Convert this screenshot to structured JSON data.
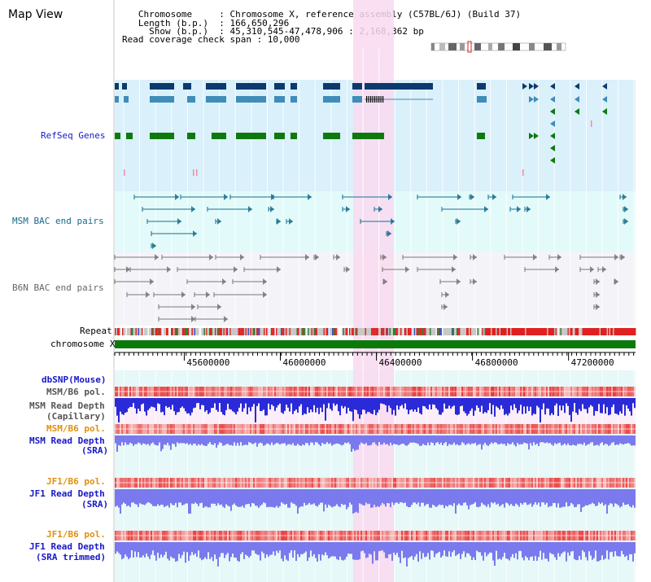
{
  "header": {
    "title": "Map View",
    "info_lines": [
      "   Chromosome     : Chromosome X, reference assembly (C57BL/6J) (Build 37)",
      "   Length (b.p.)  : 166,650,296",
      "     Show (b.p.)  : 45,310,545-47,478,906 : 2,168,362 bp",
      "Read coverage check span : 10,000"
    ]
  },
  "tracks": {
    "refseq": "RefSeq Genes",
    "msm_bac": "MSM BAC end pairs",
    "b6n_bac": "B6N BAC end pairs",
    "repeat": "Repeat",
    "chromosome": "chromosome X",
    "dbsnp": "dbSNP(Mouse)",
    "msm_b6_pol_1": "MSM/B6 pol.",
    "msm_depth_cap_1": "MSM Read Depth",
    "msm_depth_cap_2": "(Capillary)",
    "msm_b6_pol_2": "MSM/B6 pol.",
    "msm_depth_sra_1": "MSM Read Depth",
    "msm_depth_sra_2": "(SRA)",
    "jf1_b6_pol_1": "JF1/B6 pol.",
    "jf1_depth_sra_1": "JF1 Read Depth",
    "jf1_depth_sra_2": "(SRA)",
    "jf1_b6_pol_2": "JF1/B6 pol.",
    "jf1_depth_trim_1": "JF1 Read Depth",
    "jf1_depth_trim_2": "(SRA trimmed)"
  },
  "axis": {
    "ticks": [
      "45600000",
      "46000000",
      "46400000",
      "46800000",
      "47200000"
    ],
    "range": [
      45310545,
      47478906
    ]
  },
  "colors": {
    "highlight": "#f9d9f0",
    "refseq_bg": "#daf0fa",
    "msm_bac_bg": "#e3fafa",
    "b6n_bac_bg": "#f4f4f8",
    "gene_dark": "#0c3a6e",
    "gene_mid": "#3f8db8",
    "gene_green": "#0e7a0e",
    "bac_teal": "#1a6e8e",
    "bac_gray": "#777777",
    "chrom_green": "#0b7a0b",
    "depth_blue": "#2a2ad8",
    "depth_light": "#7a7aee",
    "pol_red": "#e83232",
    "label_blue": "#1818c8",
    "label_teal": "#166a8a",
    "label_gray": "#555555",
    "label_orange": "#e09010"
  }
}
